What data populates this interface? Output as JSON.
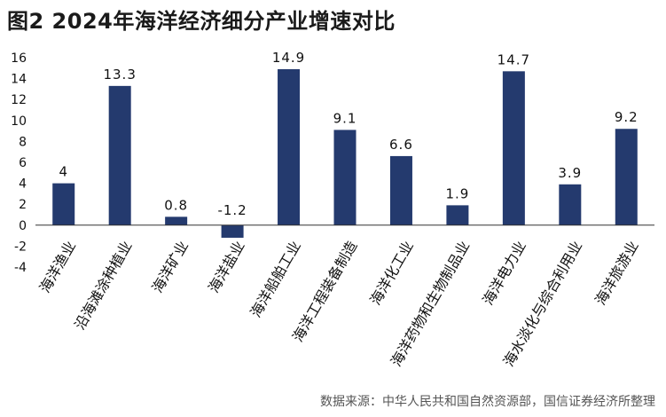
{
  "title": "图2  2024年海洋经济细分产业增速对比",
  "source": "数据来源：中华人民共和国自然资源部，国信证券经济所整理",
  "colors": {
    "bar": "#243a6e",
    "axis": "#333333",
    "text": "#111111"
  },
  "chart_data": {
    "type": "bar",
    "categories": [
      "海洋渔业",
      "沿海滩涂种植业",
      "海洋矿业",
      "海洋盐业",
      "海洋船舶工业",
      "海洋工程装备制造",
      "海洋化工业",
      "海洋药物和生物制品业",
      "海洋电力业",
      "海水淡化与综合利用业",
      "海洋旅游业"
    ],
    "values": [
      4,
      13.3,
      0.8,
      -1.2,
      14.9,
      9.1,
      6.6,
      1.9,
      14.7,
      3.9,
      9.2
    ],
    "data_labels": [
      "4",
      "13.3",
      "0.8",
      "-1.2",
      "14.9",
      "9.1",
      "6.6",
      "1.9",
      "14.7",
      "3.9",
      "9.2"
    ],
    "yticks": [
      "16",
      "14",
      "12",
      "10",
      "8",
      "6",
      "4",
      "2",
      "0",
      "-2",
      "-4"
    ],
    "ylim": [
      -4,
      16
    ],
    "xlabel": "",
    "ylabel": "",
    "grid": false,
    "legend": "none"
  }
}
